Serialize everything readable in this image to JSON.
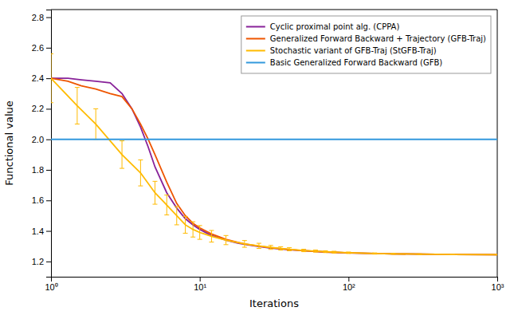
{
  "chart_data": {
    "type": "line",
    "xlabel": "Iterations",
    "ylabel": "Functional value",
    "log": "x",
    "xlim": [
      1,
      1000
    ],
    "ylim": [
      1.1,
      2.85
    ],
    "xticks": [
      {
        "value": 1,
        "label": "10⁰"
      },
      {
        "value": 10,
        "label": "10¹"
      },
      {
        "value": 100,
        "label": "10²"
      },
      {
        "value": 1000,
        "label": "10³"
      }
    ],
    "yticks": [
      1.2,
      1.4,
      1.6,
      1.8,
      {
        "value": 2.0,
        "label": "2.0"
      },
      2.2,
      2.4,
      2.6,
      2.8
    ],
    "grid": false,
    "legend": "upper-right",
    "series": [
      {
        "name": "Cyclic proximal point alg. (CPPA)",
        "color": "#882299",
        "x": [
          1,
          1.3,
          1.6,
          2.0,
          2.5,
          3.0,
          3.5,
          4.0,
          4.5,
          5.0,
          6.0,
          7.0,
          8.0,
          9.0,
          10.0,
          12.0,
          15.0,
          18.0,
          20.0,
          25.0,
          30.0,
          40.0,
          50.0,
          70.0,
          100.0,
          150.0,
          200.0,
          300.0,
          500.0,
          1000.0
        ],
        "values": [
          2.4,
          2.4,
          2.39,
          2.38,
          2.37,
          2.3,
          2.2,
          2.08,
          1.95,
          1.82,
          1.65,
          1.55,
          1.48,
          1.44,
          1.41,
          1.37,
          1.34,
          1.32,
          1.312,
          1.298,
          1.288,
          1.277,
          1.27,
          1.262,
          1.256,
          1.252,
          1.25,
          1.248,
          1.246,
          1.244
        ]
      },
      {
        "name": "Generalized Forward Backward + Trajectory (GFB-Traj)",
        "color": "#ee5500",
        "x": [
          1,
          1.3,
          1.6,
          2.0,
          2.5,
          3.0,
          3.5,
          4.0,
          4.5,
          5.0,
          6.0,
          7.0,
          8.0,
          9.0,
          10.0,
          12.0,
          15.0,
          18.0,
          20.0,
          25.0,
          30.0,
          40.0,
          50.0,
          70.0,
          100.0,
          150.0,
          200.0,
          300.0,
          500.0,
          1000.0
        ],
        "values": [
          2.4,
          2.38,
          2.35,
          2.33,
          2.3,
          2.28,
          2.2,
          2.1,
          2.0,
          1.9,
          1.72,
          1.58,
          1.5,
          1.45,
          1.42,
          1.38,
          1.345,
          1.325,
          1.315,
          1.3,
          1.29,
          1.278,
          1.27,
          1.262,
          1.256,
          1.252,
          1.25,
          1.248,
          1.246,
          1.244
        ]
      },
      {
        "name": "Stochastic variant of GFB-Traj (StGFB-Traj)",
        "color": "#ffbb00",
        "x": [
          1,
          1.5,
          2,
          3,
          4,
          5,
          6,
          7,
          8,
          9,
          10,
          12,
          15,
          20,
          25,
          30,
          35,
          40,
          50,
          60,
          70,
          80,
          100,
          150,
          200,
          300,
          500,
          1000
        ],
        "values": [
          2.4,
          2.22,
          2.1,
          1.9,
          1.78,
          1.65,
          1.57,
          1.5,
          1.44,
          1.41,
          1.39,
          1.365,
          1.34,
          1.315,
          1.302,
          1.292,
          1.285,
          1.28,
          1.272,
          1.268,
          1.264,
          1.261,
          1.257,
          1.252,
          1.25,
          1.248,
          1.246,
          1.244
        ],
        "errors": [
          0.16,
          0.12,
          0.1,
          0.09,
          0.085,
          0.075,
          0.065,
          0.06,
          0.055,
          0.05,
          0.045,
          0.038,
          0.03,
          0.022,
          0.017,
          0.013,
          0.011,
          0.01,
          0.008,
          0.007,
          0.006,
          0.006,
          0.005,
          0.004,
          0.003,
          0.002,
          0.001,
          0.001
        ]
      },
      {
        "name": "Basic Generalized Forward Backward (GFB)",
        "color": "#3399dd",
        "type": "hline",
        "values": [
          2.0
        ]
      }
    ]
  }
}
